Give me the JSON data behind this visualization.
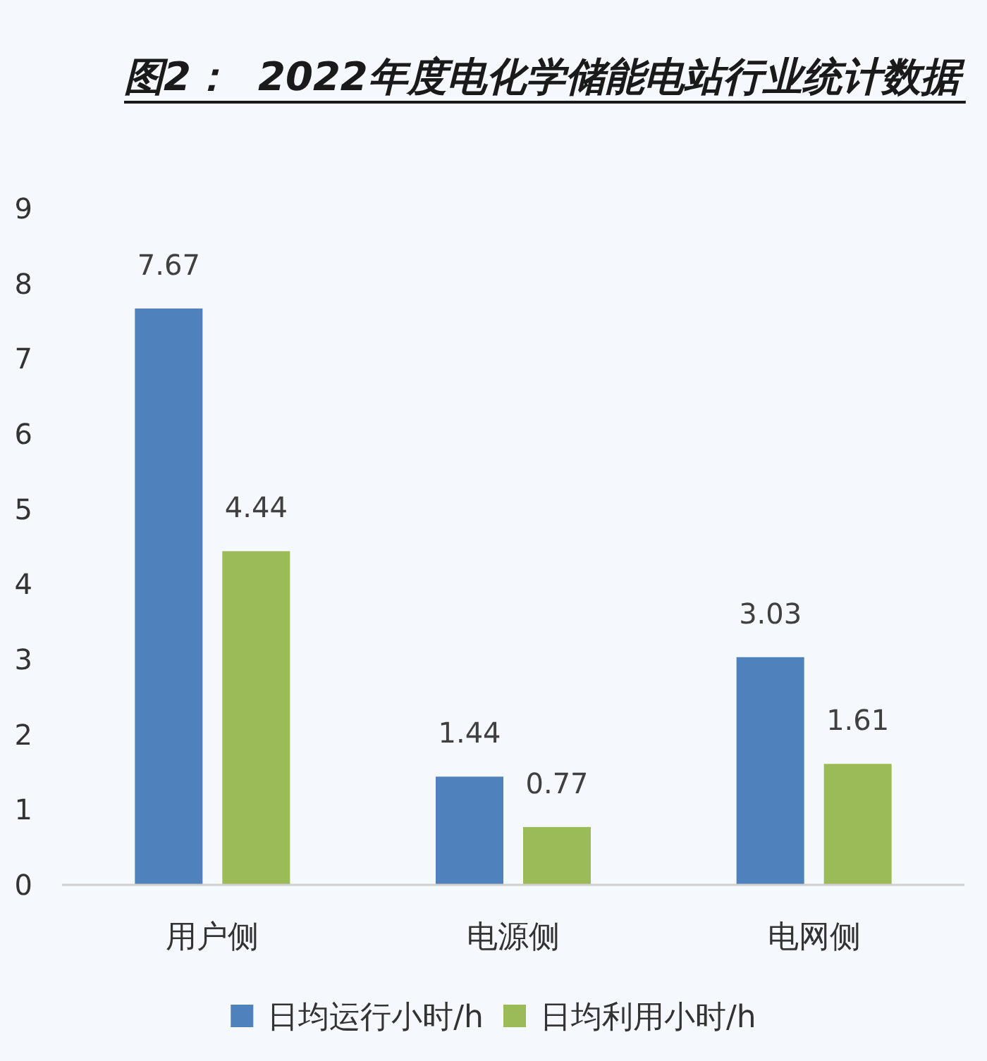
{
  "chart_data": {
    "type": "bar",
    "title": "图2：  2022年度电化学储能电站行业统计数据",
    "categories": [
      "用户侧",
      "电源侧",
      "电网侧"
    ],
    "series": [
      {
        "name": "日均运行小时/h",
        "color": "#4f81bd",
        "values": [
          7.67,
          1.44,
          3.03
        ]
      },
      {
        "name": "日均利用小时/h",
        "color": "#9bbb59",
        "values": [
          4.44,
          0.77,
          1.61
        ]
      }
    ],
    "ylim": [
      0,
      9
    ],
    "yticks": [
      0,
      1,
      2,
      3,
      4,
      5,
      6,
      7,
      8,
      9
    ],
    "data_labels": true,
    "legend": "bottom"
  }
}
